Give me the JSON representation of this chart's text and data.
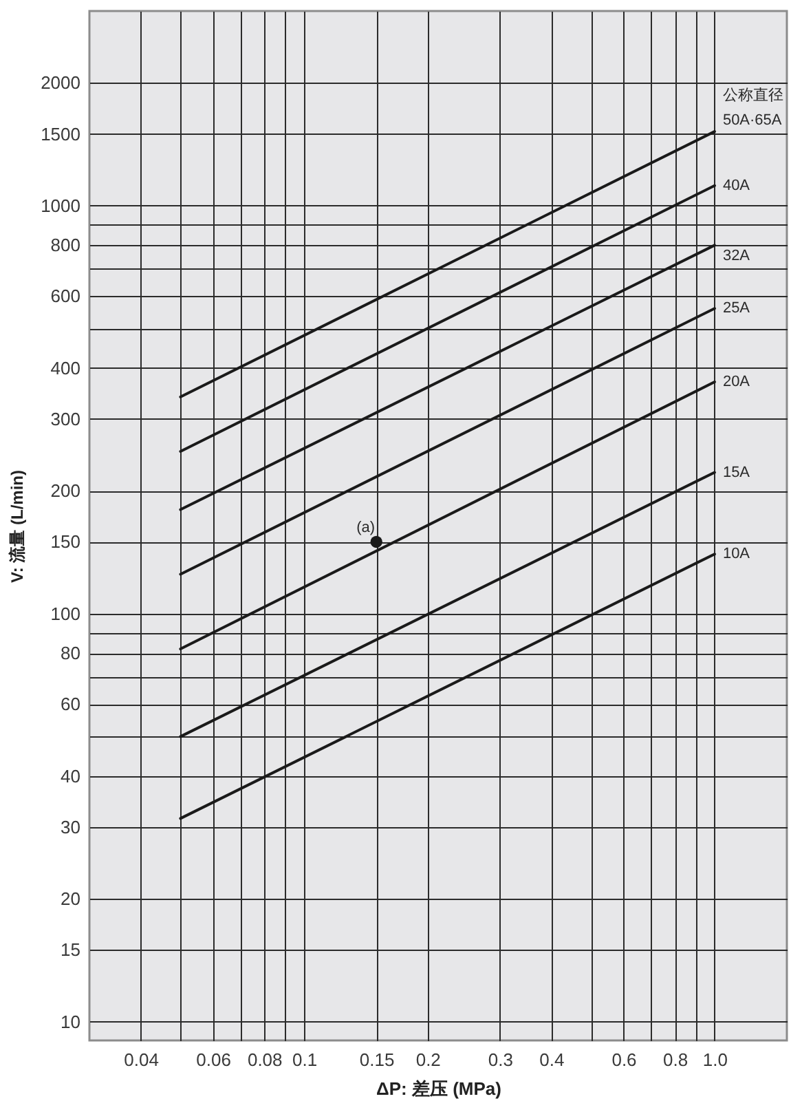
{
  "chart_data": {
    "type": "line",
    "xlabel": "ΔP: 差压 (MPa)",
    "ylabel": "V: 流量 (L/min)",
    "x": [
      0.05,
      1.0
    ],
    "series": [
      {
        "name": "50A·65A",
        "color": "#1a1a1a",
        "values": [
          340,
          1520
        ]
      },
      {
        "name": "40A",
        "color": "#1a1a1a",
        "values": [
          250,
          1120
        ]
      },
      {
        "name": "32A",
        "color": "#1a1a1a",
        "values": [
          180,
          800
        ]
      },
      {
        "name": "25A",
        "color": "#1a1a1a",
        "values": [
          125,
          560
        ]
      },
      {
        "name": "20A",
        "color": "#1a1a1a",
        "values": [
          82,
          370
        ]
      },
      {
        "name": "15A",
        "color": "#1a1a1a",
        "values": [
          50,
          222
        ]
      },
      {
        "name": "10A",
        "color": "#1a1a1a",
        "values": [
          31.5,
          140
        ]
      },
      {
        "type": "scatter",
        "color": "#1a1a1a",
        "x": [
          0.15
        ],
        "values": [
          150
        ]
      }
    ],
    "xlim": [
      0.03,
      1.5
    ],
    "ylim": [
      9,
      3000
    ],
    "xticks": [
      0.04,
      {
        "value": 0.05,
        "label": null
      },
      0.06,
      {
        "value": 0.07,
        "label": null
      },
      0.08,
      {
        "value": 0.09,
        "label": null
      },
      0.1,
      0.15,
      0.2,
      0.3,
      0.4,
      {
        "value": 0.5,
        "label": null
      },
      0.6,
      {
        "value": 0.7,
        "label": null
      },
      0.8,
      {
        "value": 0.9,
        "label": null
      },
      {
        "value": 1,
        "label": "1.0"
      }
    ],
    "yticks": [
      10,
      15,
      20,
      30,
      40,
      {
        "value": 50,
        "label": null
      },
      60,
      {
        "value": 70,
        "label": null
      },
      80,
      {
        "value": 90,
        "label": null
      },
      100,
      150,
      200,
      300,
      400,
      {
        "value": 500,
        "label": null
      },
      600,
      {
        "value": 700,
        "label": null
      },
      800,
      {
        "value": 900,
        "label": null
      },
      1000,
      1500,
      2000
    ],
    "log": "xy",
    "grid": true,
    "annotations": [
      "公称直径",
      {
        "text": "(a)",
        "x": 0.15,
        "y": 150
      }
    ]
  }
}
